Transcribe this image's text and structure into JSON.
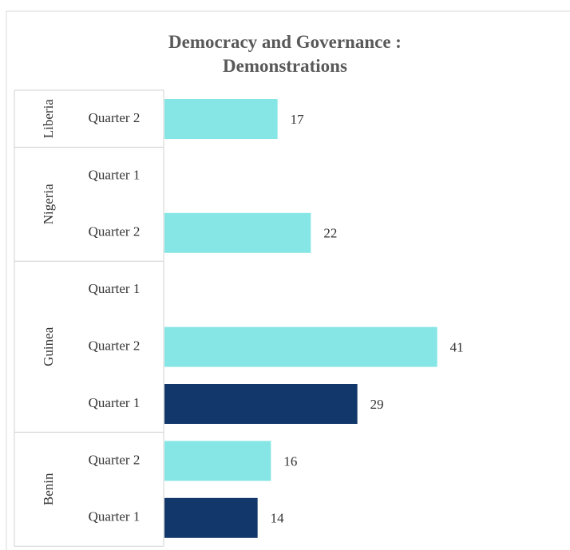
{
  "chart_data": {
    "type": "bar",
    "orientation": "horizontal",
    "title": "Democracy and Governance : Demonstrations",
    "xlim": [
      0,
      60
    ],
    "groups": [
      {
        "name": "Liberia",
        "categories": [
          "Quarter 2"
        ],
        "values": [
          17
        ],
        "colors": [
          "#86e6e6"
        ]
      },
      {
        "name": "Nigeria",
        "categories": [
          "Quarter 1",
          "Quarter 2"
        ],
        "values": [
          null,
          22
        ],
        "colors": [
          "#12376a",
          "#86e6e6"
        ]
      },
      {
        "name": "Guinea",
        "categories": [
          "Quarter 1",
          "Quarter 2",
          "Quarter 1"
        ],
        "values": [
          null,
          41,
          29
        ],
        "colors": [
          "#12376a",
          "#86e6e6",
          "#12376a"
        ]
      },
      {
        "name": "Benin",
        "categories": [
          "Quarter 2",
          "Quarter 1"
        ],
        "values": [
          16,
          14
        ],
        "colors": [
          "#86e6e6",
          "#12376a"
        ]
      }
    ]
  }
}
